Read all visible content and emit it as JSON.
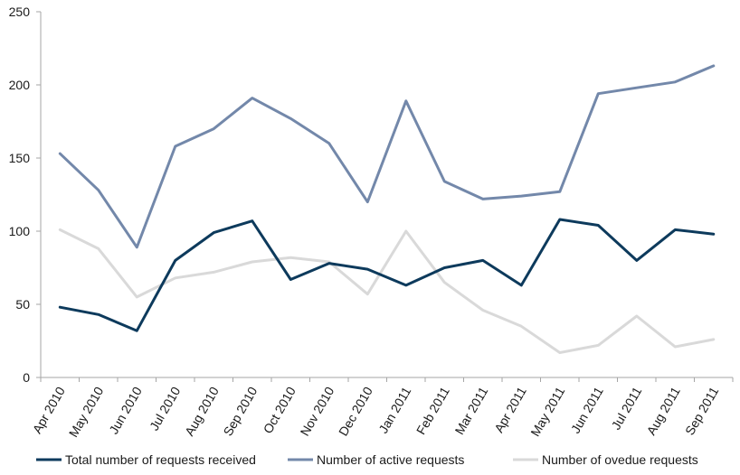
{
  "chart_data": {
    "type": "line",
    "categories": [
      "Apr 2010",
      "May 2010",
      "Jun 2010",
      "Jul 2010",
      "Aug 2010",
      "Sep 2010",
      "Oct 2010",
      "Nov 2010",
      "Dec 2010",
      "Jan 2011",
      "Feb 2011",
      "Mar 2011",
      "Apr 2011",
      "May 2011",
      "Jun 2011",
      "Jul 2011",
      "Aug 2011",
      "Sep 2011"
    ],
    "series": [
      {
        "name": "Total number of requests received",
        "color": "#0d3a5c",
        "values": [
          48,
          43,
          32,
          80,
          99,
          107,
          67,
          78,
          74,
          63,
          75,
          80,
          63,
          108,
          104,
          80,
          101,
          98
        ]
      },
      {
        "name": "Number of active requests",
        "color": "#7388aa",
        "values": [
          153,
          128,
          89,
          158,
          170,
          191,
          177,
          160,
          120,
          189,
          134,
          122,
          124,
          127,
          194,
          198,
          202,
          213
        ]
      },
      {
        "name": "Number of ovedue requests",
        "color": "#d9d9d9",
        "values": [
          101,
          88,
          55,
          68,
          72,
          79,
          82,
          79,
          57,
          100,
          65,
          46,
          35,
          17,
          22,
          42,
          21,
          26
        ]
      }
    ],
    "yticks": [
      0,
      50,
      100,
      150,
      200,
      250
    ],
    "ylim": [
      0,
      250
    ],
    "grid": false,
    "legend_position": "bottom"
  }
}
